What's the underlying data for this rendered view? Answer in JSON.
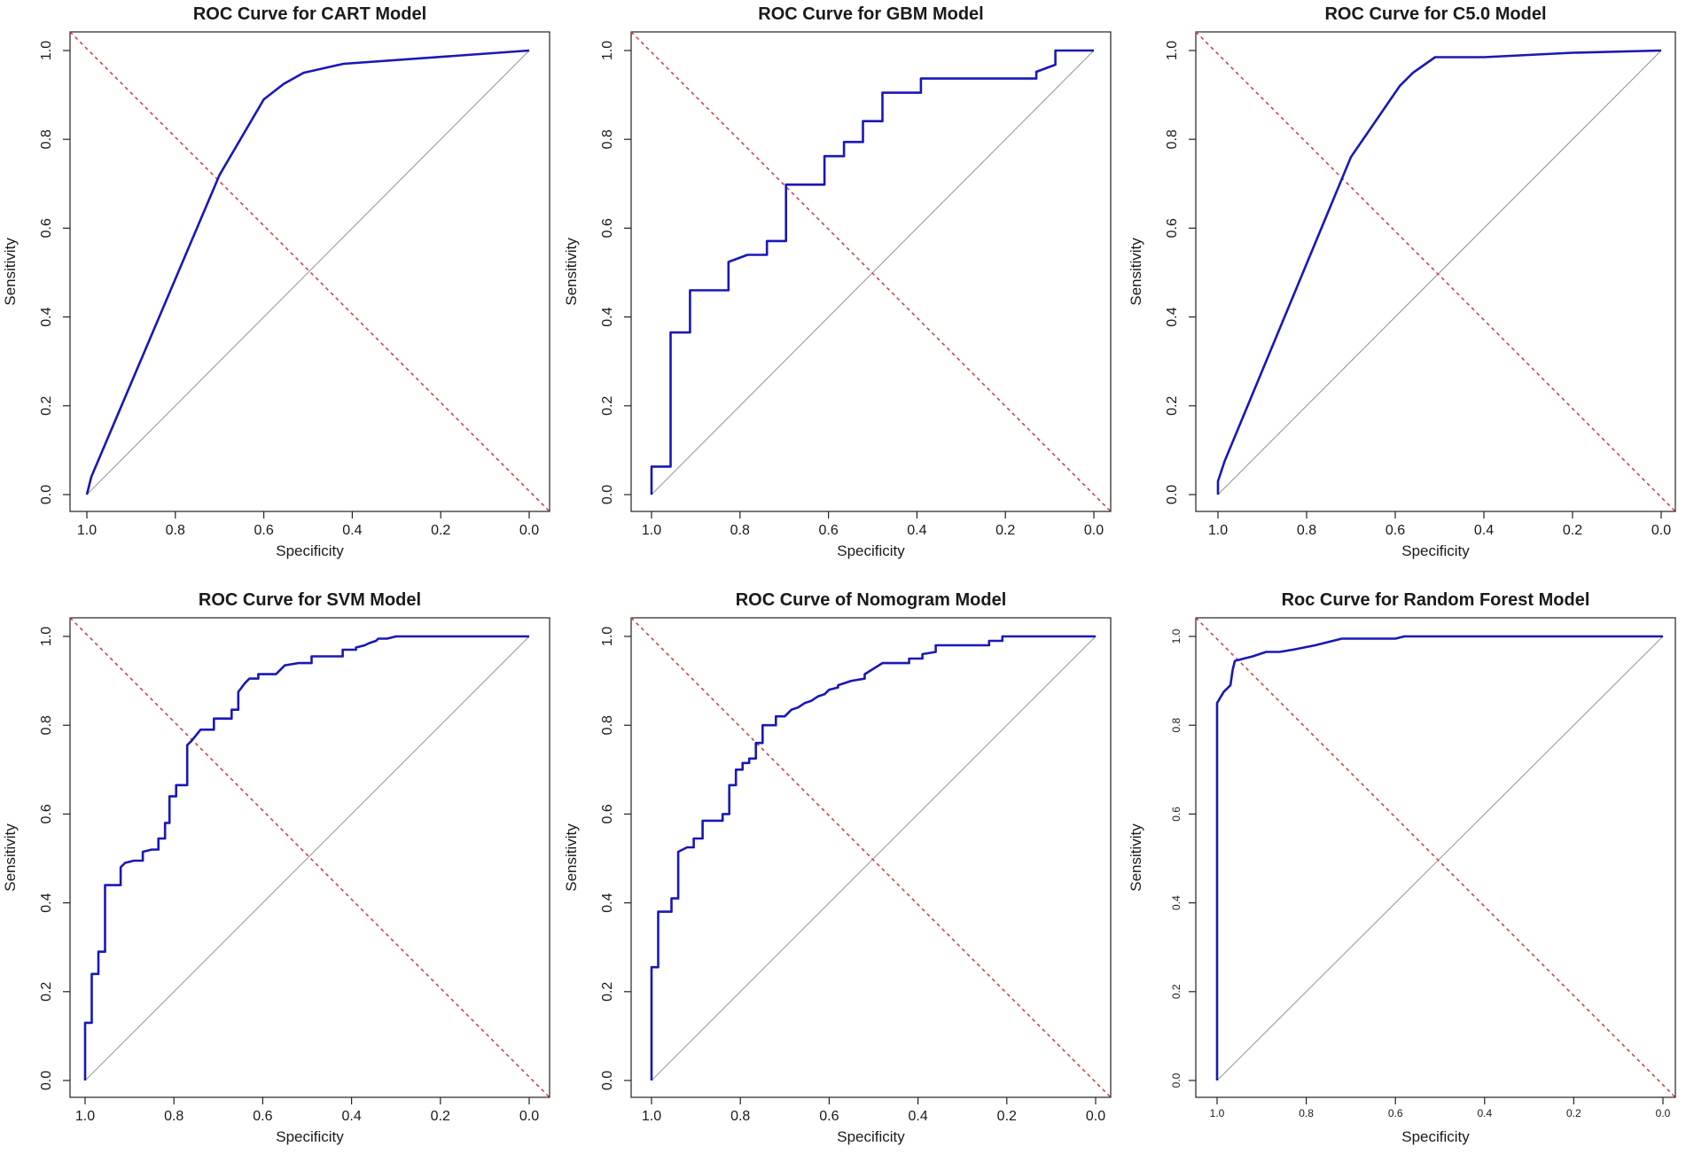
{
  "figure": {
    "colors": {
      "roc": "#1818b8",
      "reference": "#9a9a9a",
      "cutoff": "#d23a3a",
      "axis": "#222222"
    }
  },
  "chart_data": [
    {
      "type": "line",
      "title": "ROC Curve for CART Model",
      "xlabel": "Specificity",
      "ylabel": "Sensitivity",
      "xlim": [
        1.0,
        0.0
      ],
      "ylim": [
        0.0,
        1.0
      ],
      "xticks": [
        "1.0",
        "0.8",
        "0.6",
        "0.4",
        "0.2",
        "0.0"
      ],
      "yticks": [
        "0.0",
        "0.2",
        "0.4",
        "0.6",
        "0.8",
        "1.0"
      ],
      "step": false,
      "specificity": [
        1.0,
        0.99,
        0.7,
        0.6,
        0.555,
        0.51,
        0.42,
        0.0
      ],
      "sensitivity": [
        0.0,
        0.04,
        0.72,
        0.89,
        0.925,
        0.95,
        0.97,
        1.0
      ]
    },
    {
      "type": "line",
      "title": "ROC Curve for GBM Model",
      "xlabel": "Specificity",
      "ylabel": "Sensitivity",
      "xlim": [
        1.0,
        0.0
      ],
      "ylim": [
        0.0,
        1.0
      ],
      "xticks": [
        "1.0",
        "0.8",
        "0.6",
        "0.4",
        "0.2",
        "0.0"
      ],
      "yticks": [
        "0.0",
        "0.2",
        "0.4",
        "0.6",
        "0.8",
        "1.0"
      ],
      "step": true,
      "specificity": [
        1.0,
        1.0,
        0.957,
        0.957,
        0.913,
        0.913,
        0.826,
        0.826,
        0.783,
        0.739,
        0.739,
        0.696,
        0.696,
        0.609,
        0.609,
        0.565,
        0.565,
        0.522,
        0.522,
        0.478,
        0.478,
        0.391,
        0.391,
        0.13,
        0.13,
        0.087,
        0.087,
        0.0
      ],
      "sensitivity": [
        0.0,
        0.063,
        0.063,
        0.365,
        0.365,
        0.46,
        0.46,
        0.524,
        0.54,
        0.54,
        0.571,
        0.571,
        0.698,
        0.698,
        0.762,
        0.762,
        0.794,
        0.794,
        0.841,
        0.841,
        0.905,
        0.905,
        0.937,
        0.937,
        0.952,
        0.968,
        1.0,
        1.0
      ]
    },
    {
      "type": "line",
      "title": "ROC Curve for C5.0 Model",
      "xlabel": "Specificity",
      "ylabel": "Sensitivity",
      "xlim": [
        1.0,
        0.0
      ],
      "ylim": [
        0.0,
        1.0
      ],
      "xticks": [
        "1.0",
        "0.8",
        "0.6",
        "0.4",
        "0.2",
        "0.0"
      ],
      "yticks": [
        "0.0",
        "0.2",
        "0.4",
        "0.6",
        "0.8",
        "1.0"
      ],
      "step": false,
      "specificity": [
        1.0,
        1.0,
        0.985,
        0.7,
        0.59,
        0.56,
        0.51,
        0.4,
        0.2,
        0.0
      ],
      "sensitivity": [
        0.0,
        0.03,
        0.075,
        0.76,
        0.92,
        0.95,
        0.985,
        0.985,
        0.995,
        1.0
      ]
    },
    {
      "type": "line",
      "title": "ROC Curve for SVM Model",
      "xlabel": "Specificity",
      "ylabel": "Sensitivity",
      "xlim": [
        1.0,
        0.0
      ],
      "ylim": [
        0.0,
        1.0
      ],
      "xticks": [
        "1.0",
        "0.8",
        "0.6",
        "0.4",
        "0.2",
        "0.0"
      ],
      "yticks": [
        "0.0",
        "0.2",
        "0.4",
        "0.6",
        "0.8",
        "1.0"
      ],
      "step": true,
      "specificity": [
        1.0,
        1.0,
        0.985,
        0.985,
        0.97,
        0.97,
        0.955,
        0.955,
        0.92,
        0.92,
        0.91,
        0.89,
        0.87,
        0.87,
        0.85,
        0.835,
        0.835,
        0.82,
        0.82,
        0.81,
        0.81,
        0.795,
        0.795,
        0.77,
        0.77,
        0.76,
        0.74,
        0.74,
        0.71,
        0.71,
        0.67,
        0.67,
        0.655,
        0.655,
        0.64,
        0.63,
        0.61,
        0.61,
        0.57,
        0.565,
        0.55,
        0.52,
        0.49,
        0.49,
        0.42,
        0.42,
        0.39,
        0.39,
        0.37,
        0.36,
        0.345,
        0.34,
        0.32,
        0.3,
        0.0
      ],
      "sensitivity": [
        0.0,
        0.13,
        0.13,
        0.24,
        0.24,
        0.29,
        0.29,
        0.44,
        0.44,
        0.48,
        0.49,
        0.495,
        0.495,
        0.515,
        0.52,
        0.52,
        0.545,
        0.545,
        0.58,
        0.58,
        0.64,
        0.64,
        0.665,
        0.665,
        0.755,
        0.765,
        0.79,
        0.79,
        0.79,
        0.815,
        0.815,
        0.835,
        0.835,
        0.875,
        0.895,
        0.905,
        0.905,
        0.915,
        0.915,
        0.92,
        0.935,
        0.94,
        0.94,
        0.955,
        0.955,
        0.97,
        0.97,
        0.975,
        0.98,
        0.985,
        0.99,
        0.995,
        0.995,
        1.0,
        1.0
      ]
    },
    {
      "type": "line",
      "title": "ROC Curve of Nomogram Model",
      "xlabel": "Specificity",
      "ylabel": "Sensitivity",
      "xlim": [
        1.0,
        0.0
      ],
      "ylim": [
        0.0,
        1.0
      ],
      "xticks": [
        "1.0",
        "0.8",
        "0.6",
        "0.4",
        "0.2",
        "0.0"
      ],
      "yticks": [
        "0.0",
        "0.2",
        "0.4",
        "0.6",
        "0.8",
        "1.0"
      ],
      "step": true,
      "specificity": [
        1.0,
        1.0,
        0.985,
        0.985,
        0.955,
        0.955,
        0.94,
        0.94,
        0.92,
        0.905,
        0.905,
        0.885,
        0.885,
        0.84,
        0.84,
        0.825,
        0.825,
        0.81,
        0.81,
        0.795,
        0.795,
        0.78,
        0.78,
        0.765,
        0.765,
        0.75,
        0.75,
        0.72,
        0.72,
        0.7,
        0.685,
        0.67,
        0.655,
        0.64,
        0.625,
        0.61,
        0.6,
        0.58,
        0.58,
        0.55,
        0.52,
        0.52,
        0.48,
        0.42,
        0.42,
        0.39,
        0.39,
        0.36,
        0.36,
        0.24,
        0.24,
        0.21,
        0.21,
        0.0
      ],
      "sensitivity": [
        0.0,
        0.255,
        0.255,
        0.38,
        0.38,
        0.41,
        0.41,
        0.515,
        0.525,
        0.525,
        0.545,
        0.545,
        0.585,
        0.585,
        0.6,
        0.6,
        0.665,
        0.665,
        0.7,
        0.7,
        0.715,
        0.715,
        0.725,
        0.725,
        0.76,
        0.76,
        0.8,
        0.8,
        0.82,
        0.82,
        0.835,
        0.84,
        0.85,
        0.855,
        0.865,
        0.87,
        0.88,
        0.885,
        0.89,
        0.9,
        0.905,
        0.915,
        0.94,
        0.94,
        0.95,
        0.95,
        0.96,
        0.965,
        0.98,
        0.98,
        0.99,
        0.99,
        1.0,
        1.0
      ]
    },
    {
      "type": "line",
      "title": "Roc Curve for Random Forest Model",
      "xlabel": "Specificity",
      "ylabel": "Sensitivity",
      "xlim": [
        1.0,
        0.0
      ],
      "ylim": [
        0.0,
        1.0
      ],
      "xticks": [
        "1.0",
        "0.8",
        "0.6",
        "0.4",
        "0.2",
        "0.0"
      ],
      "yticks": [
        "0.0",
        "0.2",
        "0.4",
        "0.6",
        "0.8",
        "1.0"
      ],
      "step": false,
      "specificity": [
        1.0,
        1.0,
        0.985,
        0.97,
        0.965,
        0.96,
        0.94,
        0.92,
        0.89,
        0.86,
        0.83,
        0.78,
        0.72,
        0.6,
        0.58,
        0.0
      ],
      "sensitivity": [
        0.0,
        0.85,
        0.875,
        0.89,
        0.925,
        0.945,
        0.95,
        0.955,
        0.965,
        0.965,
        0.97,
        0.98,
        0.995,
        0.995,
        1.0,
        1.0
      ]
    }
  ]
}
